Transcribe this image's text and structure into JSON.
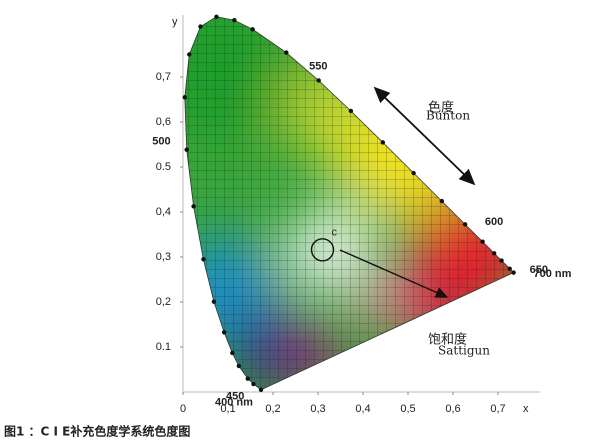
{
  "chart_data": {
    "type": "chromaticity",
    "caption": "图1 ：C I E补充色度学系统色度图",
    "x_label": "x",
    "y_label": "y",
    "xlim": [
      0,
      0.8
    ],
    "ylim": [
      0,
      0.85
    ],
    "xticks": [
      {
        "value": 0,
        "label": "0"
      },
      {
        "value": 0.1,
        "label": "0,1"
      },
      {
        "value": 0.2,
        "label": "0,2"
      },
      {
        "value": 0.3,
        "label": "0,3"
      },
      {
        "value": 0.4,
        "label": "0,4"
      },
      {
        "value": 0.5,
        "label": "0,5"
      },
      {
        "value": 0.6,
        "label": "0,6"
      },
      {
        "value": 0.7,
        "label": "0,7"
      }
    ],
    "yticks": [
      {
        "value": 0.1,
        "label": "0.1"
      },
      {
        "value": 0.2,
        "label": "0,2"
      },
      {
        "value": 0.3,
        "label": "0,3"
      },
      {
        "value": 0.4,
        "label": "0,4"
      },
      {
        "value": 0.5,
        "label": "0.5"
      },
      {
        "value": 0.6,
        "label": "0,6"
      },
      {
        "value": 0.7,
        "label": "0,7"
      }
    ],
    "locus": {
      "x": [
        0.1566,
        0.144,
        0.1241,
        0.1096,
        0.0913,
        0.0687,
        0.0454,
        0.0235,
        0.0082,
        0.0039,
        0.0139,
        0.0389,
        0.0743,
        0.1142,
        0.1547,
        0.2296,
        0.3016,
        0.3731,
        0.4441,
        0.5125,
        0.5752,
        0.627,
        0.6658,
        0.6915,
        0.7079,
        0.726,
        0.7347,
        0.1733
      ],
      "y": [
        0.0177,
        0.0297,
        0.0578,
        0.0868,
        0.1327,
        0.2007,
        0.295,
        0.4127,
        0.5384,
        0.6548,
        0.7502,
        0.812,
        0.8338,
        0.8262,
        0.8059,
        0.7543,
        0.6923,
        0.6245,
        0.5547,
        0.4866,
        0.4242,
        0.3725,
        0.334,
        0.3083,
        0.292,
        0.274,
        0.2653,
        0.0048
      ],
      "labels": [
        "450",
        null,
        null,
        null,
        null,
        null,
        null,
        null,
        "500",
        null,
        null,
        null,
        null,
        null,
        null,
        null,
        "550",
        null,
        null,
        null,
        null,
        "600",
        null,
        null,
        null,
        "650",
        "700 nm",
        "400 nm"
      ]
    },
    "white_point": {
      "x": 0.31,
      "y": 0.316,
      "label": "c"
    },
    "hue_label": "色度",
    "hue_label_en": "Bunton",
    "saturation_label": "饱和度",
    "saturation_label_en": "Sattigun"
  }
}
